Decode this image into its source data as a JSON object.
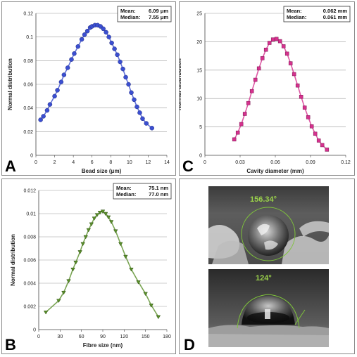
{
  "panels": {
    "a": {
      "letter": "A"
    },
    "b": {
      "letter": "B"
    },
    "c": {
      "letter": "C"
    },
    "d": {
      "letter": "D"
    }
  },
  "chart_data": [
    {
      "panel": "A",
      "type": "scatter",
      "xlabel": "Bead size (μm)",
      "ylabel": "Normal distribution",
      "xlim": [
        0,
        14
      ],
      "ylim": [
        0,
        0.12
      ],
      "xticks": [
        0,
        2,
        4,
        6,
        8,
        10,
        12,
        14
      ],
      "yticks": [
        0,
        0.02,
        0.04,
        0.06,
        0.08,
        0.1,
        0.12
      ],
      "yticklabels": [
        "0",
        "0.02",
        "0.04",
        "0.06",
        "0.08",
        "0.1",
        "0.12"
      ],
      "grid": true,
      "color": "#3b4fd1",
      "marker": "circle",
      "stats": [
        {
          "label": "Mean:",
          "value": "6.09 μm"
        },
        {
          "label": "Median:",
          "value": "7.55 μm"
        }
      ],
      "series": [
        {
          "x": [
            0.5,
            0.8,
            1.2,
            1.5,
            2.0,
            2.3,
            2.7,
            3.0,
            3.4,
            3.8,
            4.1,
            4.5,
            4.9,
            5.2,
            5.5,
            5.8,
            6.0,
            6.3,
            6.6,
            6.9,
            7.2,
            7.5,
            7.8,
            8.1,
            8.4,
            8.7,
            9.0,
            9.3,
            9.6,
            9.9,
            10.2,
            10.5,
            10.8,
            11.1,
            11.4,
            11.8,
            12.4
          ],
          "y": [
            0.03,
            0.033,
            0.038,
            0.043,
            0.05,
            0.055,
            0.062,
            0.068,
            0.074,
            0.081,
            0.086,
            0.092,
            0.098,
            0.102,
            0.105,
            0.108,
            0.109,
            0.11,
            0.11,
            0.109,
            0.107,
            0.104,
            0.1,
            0.095,
            0.09,
            0.085,
            0.079,
            0.073,
            0.066,
            0.06,
            0.053,
            0.047,
            0.041,
            0.036,
            0.031,
            0.027,
            0.023
          ]
        }
      ]
    },
    {
      "panel": "C",
      "type": "scatter",
      "xlabel": "Cavity diameter (mm)",
      "ylabel": "Normal distribution",
      "xlim": [
        0,
        0.12
      ],
      "ylim": [
        0,
        25
      ],
      "xticks": [
        0,
        0.03,
        0.06,
        0.09,
        0.12
      ],
      "yticks": [
        0,
        5,
        10,
        15,
        20,
        25
      ],
      "xticklabels": [
        "0",
        "0.03",
        "0.06",
        "0.09",
        "0.12"
      ],
      "yticklabels": [
        "0",
        "5",
        "10",
        "15",
        "20",
        "25"
      ],
      "grid": true,
      "color": "#d6318e",
      "marker": "square",
      "stats": [
        {
          "label": "Mean:",
          "value": "0.062 mm"
        },
        {
          "label": "Median:",
          "value": "0.061 mm"
        }
      ],
      "series": [
        {
          "x": [
            0.025,
            0.028,
            0.031,
            0.034,
            0.037,
            0.04,
            0.043,
            0.046,
            0.049,
            0.052,
            0.055,
            0.058,
            0.061,
            0.064,
            0.067,
            0.07,
            0.073,
            0.076,
            0.079,
            0.082,
            0.085,
            0.088,
            0.091,
            0.094,
            0.097,
            0.1,
            0.104
          ],
          "y": [
            2.8,
            4.0,
            5.5,
            7.3,
            9.2,
            11.3,
            13.3,
            15.3,
            17.1,
            18.6,
            19.8,
            20.4,
            20.5,
            20.1,
            19.2,
            17.9,
            16.2,
            14.3,
            12.3,
            10.3,
            8.4,
            6.7,
            5.1,
            3.8,
            2.6,
            1.8,
            1.0
          ]
        }
      ]
    },
    {
      "panel": "B",
      "type": "scatter",
      "xlabel": "Fibre size (nm)",
      "ylabel": "Normal distribution",
      "xlim": [
        0,
        180
      ],
      "ylim": [
        0,
        0.012
      ],
      "xticks": [
        0,
        30,
        60,
        90,
        120,
        150,
        180
      ],
      "yticks": [
        0,
        0.002,
        0.004,
        0.006,
        0.008,
        0.01,
        0.012
      ],
      "yticklabels": [
        "0",
        "0.002",
        "0.004",
        "0.006",
        "0.008",
        "0.01",
        "0.012"
      ],
      "grid": true,
      "color": "#5a8f2a",
      "marker": "triangle",
      "stats": [
        {
          "label": "Mean:",
          "value": "75.1 nm"
        },
        {
          "label": "Median:",
          "value": "77.0 nm"
        }
      ],
      "series": [
        {
          "x": [
            10,
            28,
            35,
            42,
            48,
            52,
            58,
            62,
            66,
            70,
            74,
            78,
            82,
            86,
            90,
            94,
            98,
            102,
            108,
            115,
            122,
            130,
            140,
            150,
            158,
            168
          ],
          "y": [
            0.0015,
            0.0025,
            0.0032,
            0.0042,
            0.0052,
            0.0058,
            0.0067,
            0.0074,
            0.008,
            0.0086,
            0.0091,
            0.0096,
            0.0099,
            0.0101,
            0.0102,
            0.01,
            0.0097,
            0.0093,
            0.0085,
            0.0074,
            0.0063,
            0.0052,
            0.0041,
            0.0031,
            0.0021,
            0.0011
          ]
        }
      ]
    }
  ],
  "panel_d": {
    "top_angle": "156.34°",
    "bottom_angle": "124°"
  }
}
